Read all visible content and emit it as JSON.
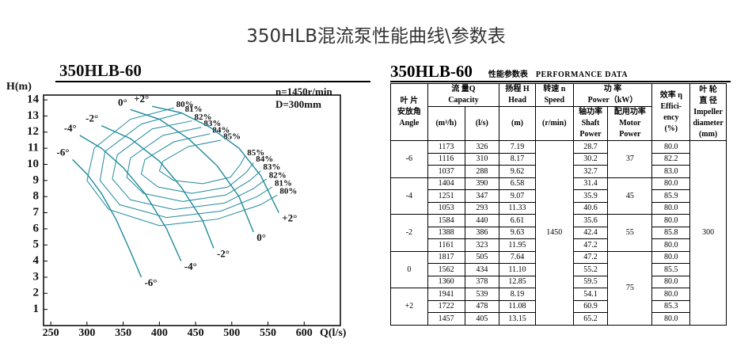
{
  "header": {
    "title": "350HLB混流泵性能曲线\\参数表"
  },
  "chart_data": {
    "type": "line",
    "title": "350HLB-60",
    "x_label": "Q(l/s)",
    "y_label": "H(m)",
    "annotations": [
      "n=1450r/min",
      "D=300mm"
    ],
    "xlim": [
      240,
      650
    ],
    "xticks": [
      250,
      300,
      350,
      400,
      450,
      500,
      550,
      600
    ],
    "ylim": [
      0,
      14.3
    ],
    "yticks": [
      1,
      2,
      3,
      4,
      5,
      6,
      7,
      8,
      9,
      10,
      11,
      12,
      13,
      14
    ],
    "color": "#1f8a9c",
    "series": [
      {
        "name": "-6°",
        "x": [
          280,
          300,
          320,
          340,
          360,
          375
        ],
        "values": [
          10.3,
          9.4,
          8.2,
          6.6,
          4.6,
          3.0
        ]
      },
      {
        "name": "-4°",
        "x": [
          290,
          320,
          350,
          380,
          410,
          430
        ],
        "values": [
          11.8,
          11.0,
          9.8,
          8.2,
          6.0,
          4.0
        ]
      },
      {
        "name": "-2°",
        "x": [
          320,
          360,
          400,
          430,
          460,
          475
        ],
        "values": [
          12.4,
          11.6,
          10.2,
          8.6,
          6.5,
          4.8
        ]
      },
      {
        "name": "0°",
        "x": [
          360,
          400,
          440,
          480,
          510,
          530
        ],
        "values": [
          13.4,
          12.8,
          11.6,
          9.9,
          8.0,
          5.8
        ]
      },
      {
        "name": "+2°",
        "x": [
          390,
          430,
          470,
          510,
          540,
          565
        ],
        "values": [
          13.6,
          13.2,
          12.3,
          11.0,
          9.3,
          7.0
        ]
      }
    ],
    "efficiency_series": [
      {
        "name": "80%",
        "x": [
          420,
          360,
          310,
          300,
          330,
          400,
          480,
          540,
          563
        ],
        "values": [
          13.5,
          12.8,
          11.0,
          9.0,
          7.2,
          6.2,
          6.6,
          7.5,
          8.1
        ]
      },
      {
        "name": "81%",
        "x": [
          432,
          375,
          325,
          318,
          345,
          410,
          485,
          535,
          556
        ],
        "values": [
          13.2,
          12.5,
          10.8,
          9.0,
          7.5,
          6.7,
          7.1,
          8.0,
          8.6
        ]
      },
      {
        "name": "82%",
        "x": [
          445,
          390,
          342,
          335,
          360,
          420,
          490,
          530,
          548
        ],
        "values": [
          12.7,
          12.2,
          10.6,
          9.1,
          7.8,
          7.2,
          7.6,
          8.5,
          9.1
        ]
      },
      {
        "name": "83%",
        "x": [
          458,
          405,
          360,
          355,
          378,
          432,
          492,
          525,
          540
        ],
        "values": [
          12.3,
          11.8,
          10.4,
          9.2,
          8.2,
          7.7,
          8.1,
          9.0,
          9.6
        ]
      },
      {
        "name": "84%",
        "x": [
          470,
          420,
          380,
          375,
          398,
          445,
          495,
          520,
          530
        ],
        "values": [
          11.9,
          11.4,
          10.3,
          9.4,
          8.6,
          8.2,
          8.6,
          9.5,
          10.1
        ]
      },
      {
        "name": "85%",
        "x": [
          485,
          440,
          405,
          400,
          420,
          460,
          498,
          512,
          518
        ],
        "values": [
          11.5,
          11.1,
          10.2,
          9.6,
          9.0,
          8.8,
          9.2,
          10.0,
          10.5
        ]
      }
    ]
  },
  "table": {
    "title": "350HLB-60",
    "subtitle": "性能参数表",
    "subtitle_en": "PERFORMANCE  DATA",
    "headers": {
      "angle": [
        "叶 片",
        "安放角",
        "Angle"
      ],
      "flow": [
        "流 量Q",
        "Capacity"
      ],
      "m3h": "(m³/h)",
      "ls": "(l/s)",
      "head": [
        "扬程 H",
        "Head",
        "(m)"
      ],
      "speed": [
        "转速 n",
        "Speed",
        "(r/min)"
      ],
      "power": [
        "功 率",
        "Power（kW）"
      ],
      "shaft": [
        "轴功率",
        "Shaft",
        "Power"
      ],
      "motor": [
        "配用功率",
        "Motor",
        "Power"
      ],
      "eff": [
        "效率 η",
        "Effici-",
        "ency",
        "(%)"
      ],
      "impeller": [
        "叶 轮",
        "直 径",
        "Impeller",
        "diameter",
        "(mm)"
      ]
    },
    "speed": "1450",
    "impeller": "300",
    "motor_power": [
      "37",
      "45",
      "55",
      "75"
    ],
    "groups": [
      {
        "angle": "-6",
        "rows": [
          [
            "1173",
            "326",
            "7.19",
            "28.7",
            "80.0"
          ],
          [
            "1116",
            "310",
            "8.17",
            "30.2",
            "82.2"
          ],
          [
            "1037",
            "288",
            "9.62",
            "32.7",
            "83.0"
          ]
        ]
      },
      {
        "angle": "-4",
        "rows": [
          [
            "1404",
            "390",
            "6.58",
            "31.4",
            "80.0"
          ],
          [
            "1251",
            "347",
            "9.07",
            "35.9",
            "85.9"
          ],
          [
            "1053",
            "293",
            "11.33",
            "40.6",
            "80.0"
          ]
        ]
      },
      {
        "angle": "-2",
        "rows": [
          [
            "1584",
            "440",
            "6.61",
            "35.6",
            "80.0"
          ],
          [
            "1388",
            "386",
            "9.63",
            "42.4",
            "85.8"
          ],
          [
            "1161",
            "323",
            "11.95",
            "47.2",
            "80.0"
          ]
        ]
      },
      {
        "angle": "0",
        "rows": [
          [
            "1817",
            "505",
            "7.64",
            "47.2",
            "80.0"
          ],
          [
            "1562",
            "434",
            "11.10",
            "55.2",
            "85.5"
          ],
          [
            "1360",
            "378",
            "12.85",
            "59.5",
            "80.0"
          ]
        ]
      },
      {
        "angle": "+2",
        "rows": [
          [
            "1941",
            "539",
            "8.19",
            "54.1",
            "80.0"
          ],
          [
            "1722",
            "478",
            "11.08",
            "60.9",
            "85.3"
          ],
          [
            "1457",
            "405",
            "13.15",
            "65.2",
            "80.0"
          ]
        ]
      }
    ]
  }
}
